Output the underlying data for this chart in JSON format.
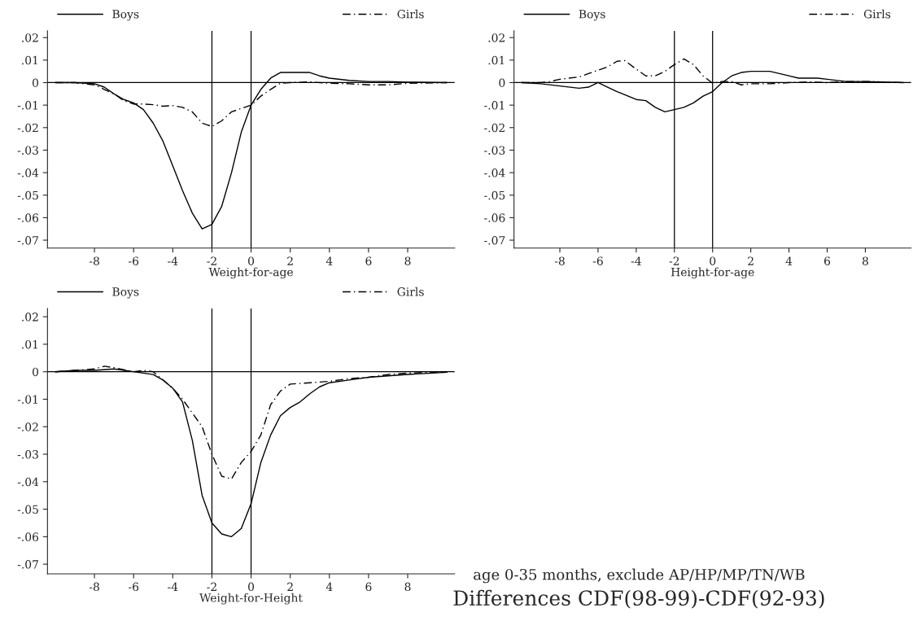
{
  "chart_data": [
    {
      "type": "line",
      "xlabel": "Weight-for-age",
      "legend": "top",
      "grid": false,
      "xlim": [
        -10.4,
        10.4
      ],
      "xticks": [
        -8,
        -6,
        -4,
        -2,
        0,
        2,
        4,
        6,
        8
      ],
      "ylim": [
        -0.0735,
        0.023
      ],
      "yticks": [
        {
          "value": 0.02,
          "label": ".02"
        },
        {
          "value": 0.01,
          "label": ".01"
        },
        0,
        {
          "value": -0.01,
          "label": "-.01"
        },
        {
          "value": -0.02,
          "label": "-.02"
        },
        {
          "value": -0.03,
          "label": "-.03"
        },
        {
          "value": -0.04,
          "label": "-.04"
        },
        {
          "value": -0.05,
          "label": "-.05"
        },
        {
          "value": -0.06,
          "label": "-.06"
        },
        {
          "value": -0.07,
          "label": "-.07"
        }
      ],
      "ref_lines": [
        {
          "axis": "x",
          "value": -2
        },
        {
          "axis": "x",
          "value": 0
        },
        {
          "axis": "y",
          "value": 0
        }
      ],
      "series": [
        {
          "name": "Boys",
          "color": "#000000",
          "line_style": "solid",
          "x": [
            -10,
            -9,
            -8,
            -7.5,
            -7,
            -6.5,
            -6,
            -5.5,
            -5,
            -4.5,
            -4,
            -3.5,
            -3,
            -2.5,
            -2,
            -1.5,
            -1,
            -0.5,
            0,
            0.5,
            1,
            1.5,
            2,
            3,
            3.5,
            4,
            5,
            6,
            7,
            8,
            10
          ],
          "values": [
            0,
            0,
            -0.0005,
            -0.002,
            -0.005,
            -0.0075,
            -0.009,
            -0.012,
            -0.018,
            -0.026,
            -0.037,
            -0.048,
            -0.058,
            -0.065,
            -0.063,
            -0.055,
            -0.04,
            -0.022,
            -0.01,
            -0.003,
            0.002,
            0.0045,
            0.0045,
            0.0045,
            0.003,
            0.002,
            0.001,
            0.0005,
            0.0005,
            0.0002,
            0
          ]
        },
        {
          "name": "Girls",
          "color": "#000000",
          "line_style": "dashed",
          "x": [
            -10,
            -9,
            -8,
            -7.5,
            -7,
            -6.5,
            -6,
            -5.5,
            -5,
            -4.5,
            -4,
            -3.5,
            -3,
            -2.5,
            -2,
            -1.5,
            -1,
            -0.5,
            0,
            0.5,
            1,
            1.5,
            2,
            3,
            4,
            5,
            6,
            7,
            8,
            10
          ],
          "values": [
            0,
            0,
            -0.001,
            -0.003,
            -0.005,
            -0.008,
            -0.0095,
            -0.0095,
            -0.0098,
            -0.0105,
            -0.0102,
            -0.011,
            -0.013,
            -0.018,
            -0.0195,
            -0.017,
            -0.013,
            -0.0115,
            -0.01,
            -0.006,
            -0.003,
            -0.0003,
            0,
            0.0003,
            -0.0003,
            -0.0005,
            -0.001,
            -0.001,
            -0.0003,
            0
          ]
        }
      ]
    },
    {
      "type": "line",
      "xlabel": "Height-for-age",
      "legend": "top",
      "grid": false,
      "title": "Differences CDF(98-99)-CDF(92-93)",
      "subtitle": "age 0-35 months, exclude AP/HP/MP/TN/WB",
      "xlim": [
        -10.4,
        10.4
      ],
      "xticks": [
        -8,
        -6,
        -4,
        -2,
        0,
        2,
        4,
        6,
        8
      ],
      "ylim": [
        -0.0735,
        0.023
      ],
      "yticks": [
        {
          "value": 0.02,
          "label": ".02"
        },
        {
          "value": 0.01,
          "label": ".01"
        },
        0,
        {
          "value": -0.01,
          "label": "-.01"
        },
        {
          "value": -0.02,
          "label": "-.02"
        },
        {
          "value": -0.03,
          "label": "-.03"
        },
        {
          "value": -0.04,
          "label": "-.04"
        },
        {
          "value": -0.05,
          "label": "-.05"
        },
        {
          "value": -0.06,
          "label": "-.06"
        },
        {
          "value": -0.07,
          "label": "-.07"
        }
      ],
      "ref_lines": [
        {
          "axis": "x",
          "value": -2
        },
        {
          "axis": "x",
          "value": 0
        },
        {
          "axis": "y",
          "value": 0
        }
      ],
      "series": [
        {
          "name": "Boys",
          "color": "#000000",
          "line_style": "solid",
          "x": [
            -10,
            -9,
            -8,
            -7,
            -6.5,
            -6,
            -5.5,
            -5,
            -4,
            -3.5,
            -3,
            -2.5,
            -2,
            -1.5,
            -1,
            -0.5,
            0,
            0.5,
            1,
            1.5,
            2,
            3,
            4,
            4.5,
            5.5,
            6,
            7,
            8,
            10
          ],
          "values": [
            0,
            -0.0005,
            -0.0015,
            -0.0025,
            -0.002,
            0,
            -0.002,
            -0.004,
            -0.0075,
            -0.008,
            -0.011,
            -0.013,
            -0.012,
            -0.011,
            -0.009,
            -0.006,
            -0.004,
            0,
            0.003,
            0.0045,
            0.005,
            0.005,
            0.003,
            0.002,
            0.002,
            0.0015,
            0.0005,
            0.0005,
            0
          ]
        },
        {
          "name": "Girls",
          "color": "#000000",
          "line_style": "dashed",
          "x": [
            -10,
            -9,
            -8.5,
            -8,
            -7,
            -6.5,
            -6,
            -5.5,
            -5,
            -4.6,
            -4,
            -3.5,
            -3,
            -2.5,
            -2,
            -1.5,
            -1,
            -0.5,
            0,
            0.5,
            1,
            1.5,
            2,
            3,
            4,
            5,
            6,
            7,
            8,
            10
          ],
          "values": [
            0,
            0,
            0.0005,
            0.0015,
            0.0025,
            0.004,
            0.0055,
            0.007,
            0.0095,
            0.0098,
            0.006,
            0.003,
            0.003,
            0.005,
            0.008,
            0.0105,
            0.008,
            0.003,
            -0.0003,
            0.0005,
            0.0005,
            -0.001,
            -0.0005,
            -0.0005,
            0,
            0.0003,
            0,
            0.0005,
            0.0005,
            0
          ]
        }
      ]
    },
    {
      "type": "line",
      "xlabel": "Weight-for-Height",
      "legend": "top",
      "grid": false,
      "xlim": [
        -10.4,
        10.4
      ],
      "xticks": [
        -8,
        -6,
        -4,
        -2,
        0,
        2,
        4,
        6,
        8
      ],
      "ylim": [
        -0.0735,
        0.023
      ],
      "yticks": [
        {
          "value": 0.02,
          "label": ".02"
        },
        {
          "value": 0.01,
          "label": ".01"
        },
        0,
        {
          "value": -0.01,
          "label": "-.01"
        },
        {
          "value": -0.02,
          "label": "-.02"
        },
        {
          "value": -0.03,
          "label": "-.03"
        },
        {
          "value": -0.04,
          "label": "-.04"
        },
        {
          "value": -0.05,
          "label": "-.05"
        },
        {
          "value": -0.06,
          "label": "-.06"
        },
        {
          "value": -0.07,
          "label": "-.07"
        }
      ],
      "ref_lines": [
        {
          "axis": "x",
          "value": -2
        },
        {
          "axis": "x",
          "value": 0
        },
        {
          "axis": "y",
          "value": 0
        }
      ],
      "series": [
        {
          "name": "Boys",
          "color": "#000000",
          "line_style": "solid",
          "x": [
            -10,
            -9,
            -8,
            -7,
            -6,
            -5,
            -4.5,
            -4,
            -3.5,
            -3,
            -2.5,
            -2,
            -1.5,
            -1,
            -0.5,
            0,
            0.5,
            1,
            1.5,
            2,
            2.5,
            3,
            3.5,
            4,
            5,
            6,
            7,
            8,
            10
          ],
          "values": [
            0,
            0.0005,
            0.0005,
            0.001,
            0,
            -0.001,
            -0.003,
            -0.006,
            -0.011,
            -0.025,
            -0.045,
            -0.055,
            -0.059,
            -0.06,
            -0.057,
            -0.048,
            -0.033,
            -0.023,
            -0.016,
            -0.013,
            -0.011,
            -0.008,
            -0.0055,
            -0.004,
            -0.003,
            -0.002,
            -0.0015,
            -0.001,
            -0.0002
          ]
        },
        {
          "name": "Girls",
          "color": "#000000",
          "line_style": "dashed",
          "x": [
            -10,
            -9,
            -8,
            -7.5,
            -7,
            -6,
            -5.5,
            -5,
            -4.5,
            -4,
            -3.5,
            -3,
            -2.5,
            -2,
            -1.5,
            -1,
            -0.5,
            0,
            0.5,
            1,
            1.5,
            2,
            3,
            4,
            5,
            6,
            7,
            8,
            10
          ],
          "values": [
            0,
            0.0005,
            0.001,
            0.002,
            0.0015,
            0,
            0.0005,
            0,
            -0.003,
            -0.006,
            -0.01,
            -0.015,
            -0.02,
            -0.03,
            -0.038,
            -0.039,
            -0.033,
            -0.029,
            -0.023,
            -0.012,
            -0.007,
            -0.0045,
            -0.004,
            -0.0035,
            -0.0025,
            -0.002,
            -0.001,
            -0.0005,
            0
          ]
        }
      ]
    }
  ]
}
